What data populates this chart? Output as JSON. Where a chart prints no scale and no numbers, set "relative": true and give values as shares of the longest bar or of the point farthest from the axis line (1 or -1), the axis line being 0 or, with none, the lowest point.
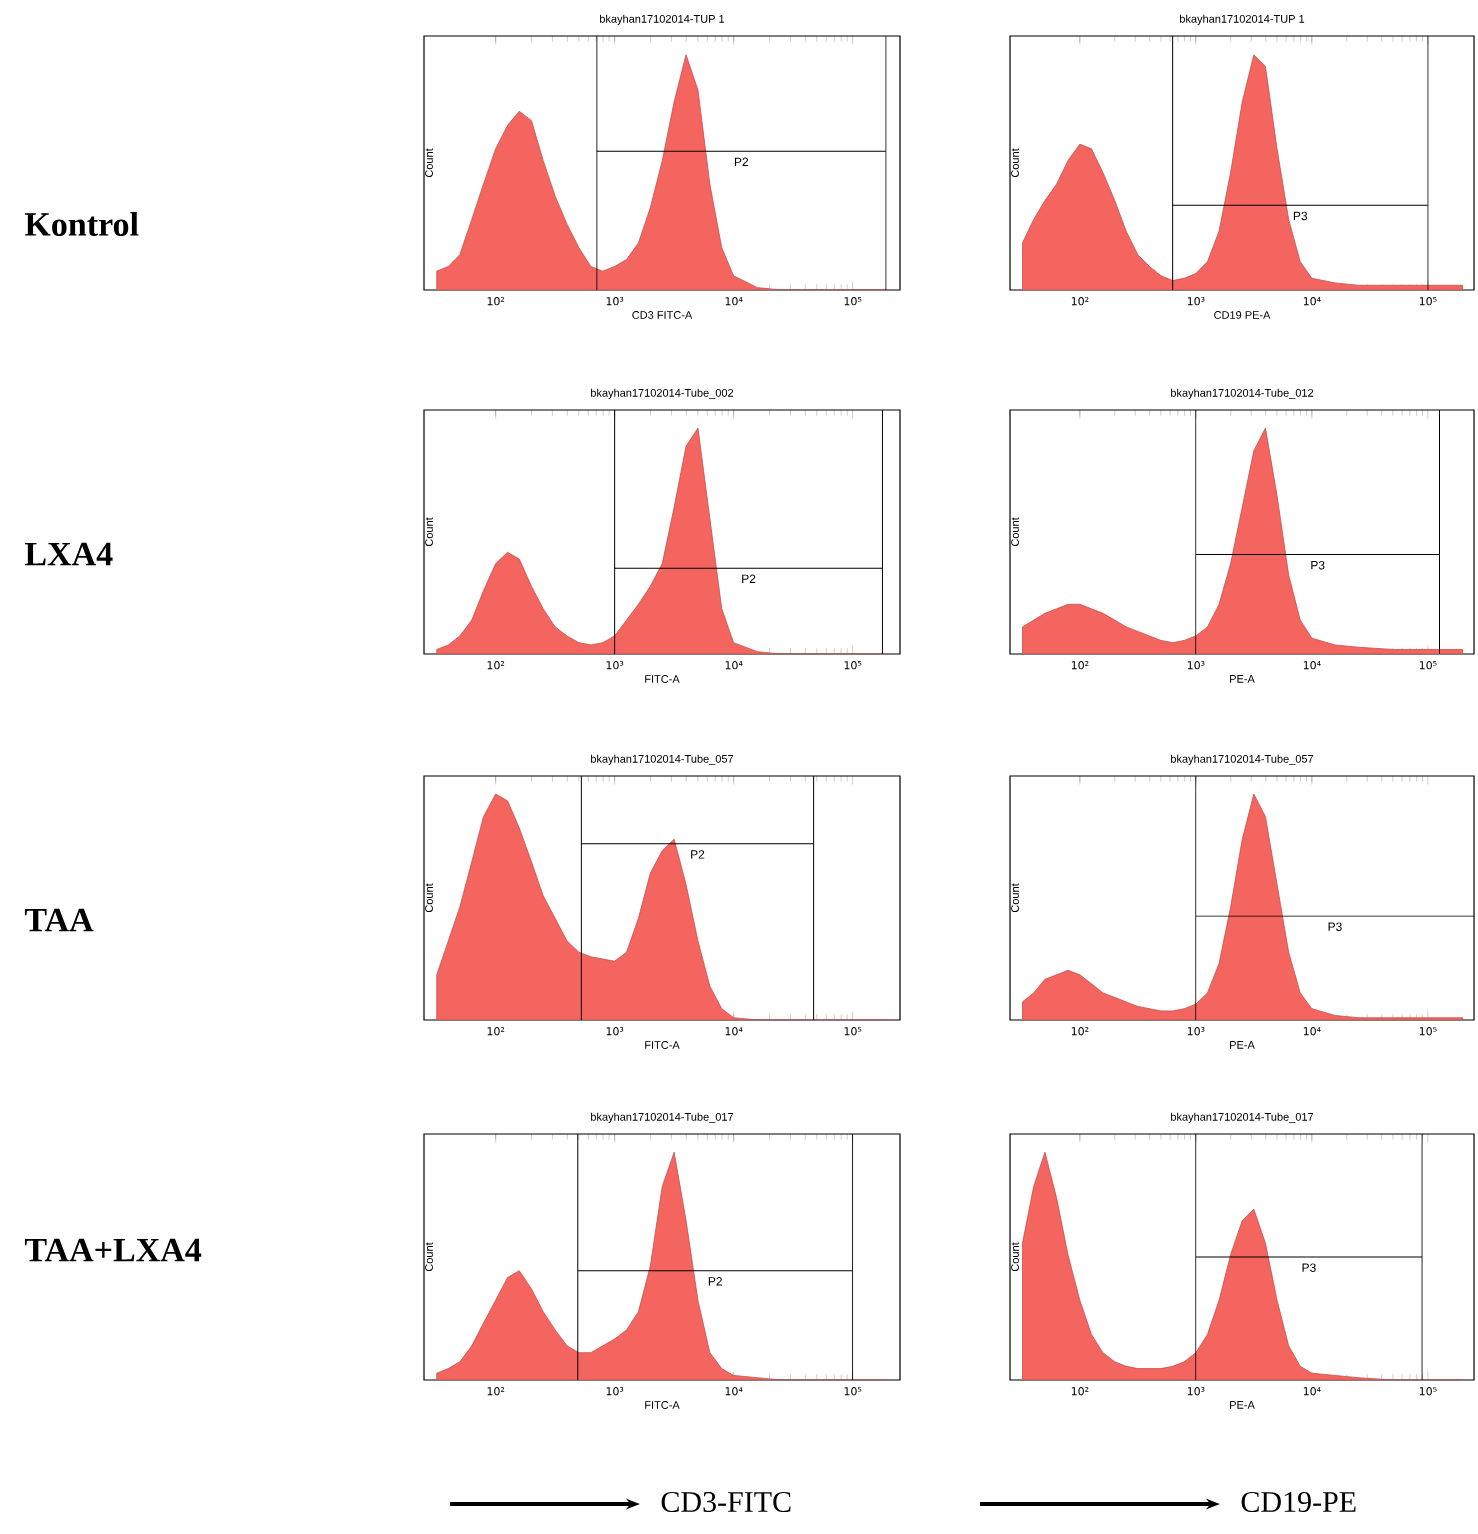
{
  "chart_data": [
    {
      "type": "area",
      "title": "bkayhan17102014-TUP 1",
      "xlabel": "CD3 FITC-A",
      "ylabel": "Count",
      "relative": true,
      "log": "x",
      "xlim": [
        25,
        250000
      ],
      "xticks": [
        {
          "value": 100,
          "label": "10²"
        },
        {
          "value": 1000,
          "label": "10³"
        },
        {
          "value": 10000,
          "label": "10⁴"
        },
        {
          "value": 100000,
          "label": "10⁵"
        }
      ],
      "x": [
        32,
        40,
        50,
        63,
        79,
        100,
        126,
        158,
        200,
        251,
        316,
        398,
        501,
        631,
        794,
        1000,
        1259,
        1585,
        1995,
        2512,
        3162,
        3981,
        5012,
        6310,
        7943,
        10000,
        15849,
        25119,
        50119,
        100000,
        199526
      ],
      "series": [
        {
          "color": "#f4655f",
          "values": [
            0.08,
            0.1,
            0.15,
            0.3,
            0.45,
            0.6,
            0.7,
            0.76,
            0.72,
            0.55,
            0.4,
            0.28,
            0.18,
            0.1,
            0.08,
            0.1,
            0.13,
            0.2,
            0.35,
            0.55,
            0.8,
            1,
            0.85,
            0.45,
            0.18,
            0.06,
            0.01,
            0,
            0,
            0,
            0
          ]
        }
      ],
      "ref_lines": [
        {
          "axis": "x",
          "value": 708
        },
        {
          "axis": "x",
          "value": 190000
        },
        {
          "axis": "y",
          "value": 0.59
        }
      ],
      "annotations": [
        "P2"
      ]
    },
    {
      "type": "area",
      "title": "bkayhan17102014-TUP 1",
      "xlabel": "CD19 PE-A",
      "ylabel": "Count",
      "relative": true,
      "log": "x",
      "xlim": [
        25,
        250000
      ],
      "xticks": [
        {
          "value": 100,
          "label": "10²"
        },
        {
          "value": 1000,
          "label": "10³"
        },
        {
          "value": 10000,
          "label": "10⁴"
        },
        {
          "value": 100000,
          "label": "10⁵"
        }
      ],
      "x": [
        32,
        40,
        50,
        63,
        79,
        100,
        126,
        158,
        200,
        251,
        316,
        398,
        501,
        631,
        794,
        1000,
        1259,
        1585,
        1995,
        2512,
        3162,
        3981,
        5012,
        6310,
        7943,
        10000,
        15849,
        25119,
        50119,
        100000,
        199526
      ],
      "series": [
        {
          "color": "#f4655f",
          "values": [
            0.2,
            0.3,
            0.38,
            0.45,
            0.55,
            0.62,
            0.6,
            0.5,
            0.38,
            0.25,
            0.15,
            0.1,
            0.06,
            0.04,
            0.05,
            0.07,
            0.12,
            0.25,
            0.5,
            0.8,
            1,
            0.95,
            0.6,
            0.3,
            0.12,
            0.05,
            0.03,
            0.02,
            0.02,
            0.02,
            0.02
          ]
        }
      ],
      "ref_lines": [
        {
          "axis": "x",
          "value": 631
        },
        {
          "axis": "x",
          "value": 100000
        },
        {
          "axis": "y",
          "value": 0.36
        }
      ],
      "annotations": [
        "P3"
      ]
    },
    {
      "type": "area",
      "title": "bkayhan17102014-Tube_002",
      "xlabel": "FITC-A",
      "ylabel": "Count",
      "relative": true,
      "log": "x",
      "xlim": [
        25,
        250000
      ],
      "xticks": [
        {
          "value": 100,
          "label": "10²"
        },
        {
          "value": 1000,
          "label": "10³"
        },
        {
          "value": 10000,
          "label": "10⁴"
        },
        {
          "value": 100000,
          "label": "10⁵"
        }
      ],
      "x": [
        32,
        40,
        50,
        63,
        79,
        100,
        126,
        158,
        200,
        251,
        316,
        398,
        501,
        631,
        794,
        1000,
        1259,
        1585,
        1995,
        2512,
        3162,
        3981,
        5012,
        6310,
        7943,
        10000,
        15849,
        25119,
        50119,
        100000,
        199526
      ],
      "series": [
        {
          "color": "#f4655f",
          "values": [
            0.02,
            0.04,
            0.08,
            0.15,
            0.28,
            0.4,
            0.45,
            0.42,
            0.3,
            0.2,
            0.12,
            0.08,
            0.05,
            0.04,
            0.05,
            0.08,
            0.15,
            0.22,
            0.3,
            0.4,
            0.65,
            0.92,
            1,
            0.6,
            0.2,
            0.05,
            0.01,
            0,
            0,
            0,
            0
          ]
        }
      ],
      "ref_lines": [
        {
          "axis": "x",
          "value": 1000
        },
        {
          "axis": "x",
          "value": 178000
        },
        {
          "axis": "y",
          "value": 0.38
        }
      ],
      "annotations": [
        "P2"
      ]
    },
    {
      "type": "area",
      "title": "bkayhan17102014-Tube_012",
      "xlabel": "PE-A",
      "ylabel": "Count",
      "relative": true,
      "log": "x",
      "xlim": [
        25,
        250000
      ],
      "xticks": [
        {
          "value": 100,
          "label": "10²"
        },
        {
          "value": 1000,
          "label": "10³"
        },
        {
          "value": 10000,
          "label": "10⁴"
        },
        {
          "value": 100000,
          "label": "10⁵"
        }
      ],
      "x": [
        32,
        40,
        50,
        63,
        79,
        100,
        126,
        158,
        200,
        251,
        316,
        398,
        501,
        631,
        794,
        1000,
        1259,
        1585,
        1995,
        2512,
        3162,
        3981,
        5012,
        6310,
        7943,
        10000,
        15849,
        25119,
        50119,
        100000,
        199526
      ],
      "series": [
        {
          "color": "#f4655f",
          "values": [
            0.12,
            0.15,
            0.18,
            0.2,
            0.22,
            0.22,
            0.2,
            0.18,
            0.15,
            0.12,
            0.1,
            0.08,
            0.06,
            0.05,
            0.06,
            0.08,
            0.12,
            0.22,
            0.4,
            0.65,
            0.9,
            1,
            0.7,
            0.35,
            0.15,
            0.07,
            0.04,
            0.03,
            0.02,
            0.02,
            0.02
          ]
        }
      ],
      "ref_lines": [
        {
          "axis": "x",
          "value": 1000
        },
        {
          "axis": "x",
          "value": 126000
        },
        {
          "axis": "y",
          "value": 0.44
        }
      ],
      "annotations": [
        "P3"
      ]
    },
    {
      "type": "area",
      "title": "bkayhan17102014-Tube_057",
      "xlabel": "FITC-A",
      "ylabel": "Count",
      "relative": true,
      "log": "x",
      "xlim": [
        25,
        250000
      ],
      "xticks": [
        {
          "value": 100,
          "label": "10²"
        },
        {
          "value": 1000,
          "label": "10³"
        },
        {
          "value": 10000,
          "label": "10⁴"
        },
        {
          "value": 100000,
          "label": "10⁵"
        }
      ],
      "x": [
        32,
        40,
        50,
        63,
        79,
        100,
        126,
        158,
        200,
        251,
        316,
        398,
        501,
        631,
        794,
        1000,
        1259,
        1585,
        1995,
        2512,
        3162,
        3981,
        5012,
        6310,
        7943,
        10000,
        15849,
        25119,
        50119,
        100000,
        199526
      ],
      "series": [
        {
          "color": "#f4655f",
          "values": [
            0.2,
            0.35,
            0.5,
            0.7,
            0.9,
            1,
            0.97,
            0.85,
            0.7,
            0.55,
            0.45,
            0.35,
            0.3,
            0.28,
            0.27,
            0.26,
            0.3,
            0.45,
            0.65,
            0.75,
            0.8,
            0.6,
            0.35,
            0.15,
            0.05,
            0.01,
            0,
            0,
            0,
            0,
            0
          ]
        }
      ],
      "ref_lines": [
        {
          "axis": "x",
          "value": 525
        },
        {
          "axis": "x",
          "value": 47000
        },
        {
          "axis": "y",
          "value": 0.78
        }
      ],
      "annotations": [
        "P2"
      ]
    },
    {
      "type": "area",
      "title": "bkayhan17102014-Tube_057",
      "xlabel": "PE-A",
      "ylabel": "Count",
      "relative": true,
      "log": "x",
      "xlim": [
        25,
        250000
      ],
      "xticks": [
        {
          "value": 100,
          "label": "10²"
        },
        {
          "value": 1000,
          "label": "10³"
        },
        {
          "value": 10000,
          "label": "10⁴"
        },
        {
          "value": 100000,
          "label": "10⁵"
        }
      ],
      "x": [
        32,
        40,
        50,
        63,
        79,
        100,
        126,
        158,
        200,
        251,
        316,
        398,
        501,
        631,
        794,
        1000,
        1259,
        1585,
        1995,
        2512,
        3162,
        3981,
        5012,
        6310,
        7943,
        10000,
        15849,
        25119,
        50119,
        100000,
        199526
      ],
      "series": [
        {
          "color": "#f4655f",
          "values": [
            0.08,
            0.12,
            0.18,
            0.2,
            0.22,
            0.2,
            0.16,
            0.12,
            0.1,
            0.08,
            0.06,
            0.05,
            0.04,
            0.04,
            0.05,
            0.07,
            0.12,
            0.25,
            0.5,
            0.8,
            1,
            0.9,
            0.6,
            0.3,
            0.12,
            0.05,
            0.02,
            0.01,
            0.01,
            0.01,
            0.01
          ]
        }
      ],
      "ref_lines": [
        {
          "axis": "x",
          "value": 1000
        },
        {
          "axis": "y",
          "value": 0.46
        }
      ],
      "annotations": [
        "P3"
      ]
    },
    {
      "type": "area",
      "title": "bkayhan17102014-Tube_017",
      "xlabel": "FITC-A",
      "ylabel": "Count",
      "relative": true,
      "log": "x",
      "xlim": [
        25,
        250000
      ],
      "xticks": [
        {
          "value": 100,
          "label": "10²"
        },
        {
          "value": 1000,
          "label": "10³"
        },
        {
          "value": 10000,
          "label": "10⁴"
        },
        {
          "value": 100000,
          "label": "10⁵"
        }
      ],
      "x": [
        32,
        40,
        50,
        63,
        79,
        100,
        126,
        158,
        200,
        251,
        316,
        398,
        501,
        631,
        794,
        1000,
        1259,
        1585,
        1995,
        2512,
        3162,
        3981,
        5012,
        6310,
        7943,
        10000,
        15849,
        25119,
        50119,
        100000,
        199526
      ],
      "series": [
        {
          "color": "#f4655f",
          "values": [
            0.03,
            0.05,
            0.08,
            0.15,
            0.25,
            0.35,
            0.45,
            0.48,
            0.4,
            0.3,
            0.22,
            0.15,
            0.12,
            0.12,
            0.15,
            0.18,
            0.22,
            0.3,
            0.5,
            0.85,
            1,
            0.7,
            0.35,
            0.12,
            0.05,
            0.02,
            0.01,
            0,
            0,
            0,
            0
          ]
        }
      ],
      "ref_lines": [
        {
          "axis": "x",
          "value": 490
        },
        {
          "axis": "x",
          "value": 100000
        },
        {
          "axis": "y",
          "value": 0.48
        }
      ],
      "annotations": [
        "P2"
      ]
    },
    {
      "type": "area",
      "title": "bkayhan17102014-Tube_017",
      "xlabel": "PE-A",
      "ylabel": "Count",
      "relative": true,
      "log": "x",
      "xlim": [
        25,
        250000
      ],
      "xticks": [
        {
          "value": 100,
          "label": "10²"
        },
        {
          "value": 1000,
          "label": "10³"
        },
        {
          "value": 10000,
          "label": "10⁴"
        },
        {
          "value": 100000,
          "label": "10⁵"
        }
      ],
      "x": [
        32,
        40,
        50,
        63,
        79,
        100,
        126,
        158,
        200,
        251,
        316,
        398,
        501,
        631,
        794,
        1000,
        1259,
        1585,
        1995,
        2512,
        3162,
        3981,
        5012,
        6310,
        7943,
        10000,
        15849,
        25119,
        50119,
        100000,
        199526
      ],
      "series": [
        {
          "color": "#f4655f",
          "values": [
            0.6,
            0.85,
            1,
            0.8,
            0.55,
            0.35,
            0.2,
            0.12,
            0.08,
            0.06,
            0.05,
            0.05,
            0.05,
            0.06,
            0.08,
            0.12,
            0.2,
            0.35,
            0.55,
            0.7,
            0.75,
            0.6,
            0.35,
            0.15,
            0.06,
            0.03,
            0.02,
            0.01,
            0,
            0,
            0
          ]
        }
      ],
      "ref_lines": [
        {
          "axis": "x",
          "value": 1000
        },
        {
          "axis": "x",
          "value": 89000
        },
        {
          "axis": "y",
          "value": 0.54
        }
      ],
      "annotations": [
        "P3"
      ]
    },
    {
      "type": "other",
      "annotations": [
        "Kontrol",
        "LXA4",
        "TAA",
        "TAA+LXA4",
        "CD3-FITC",
        "CD19-PE"
      ]
    }
  ]
}
